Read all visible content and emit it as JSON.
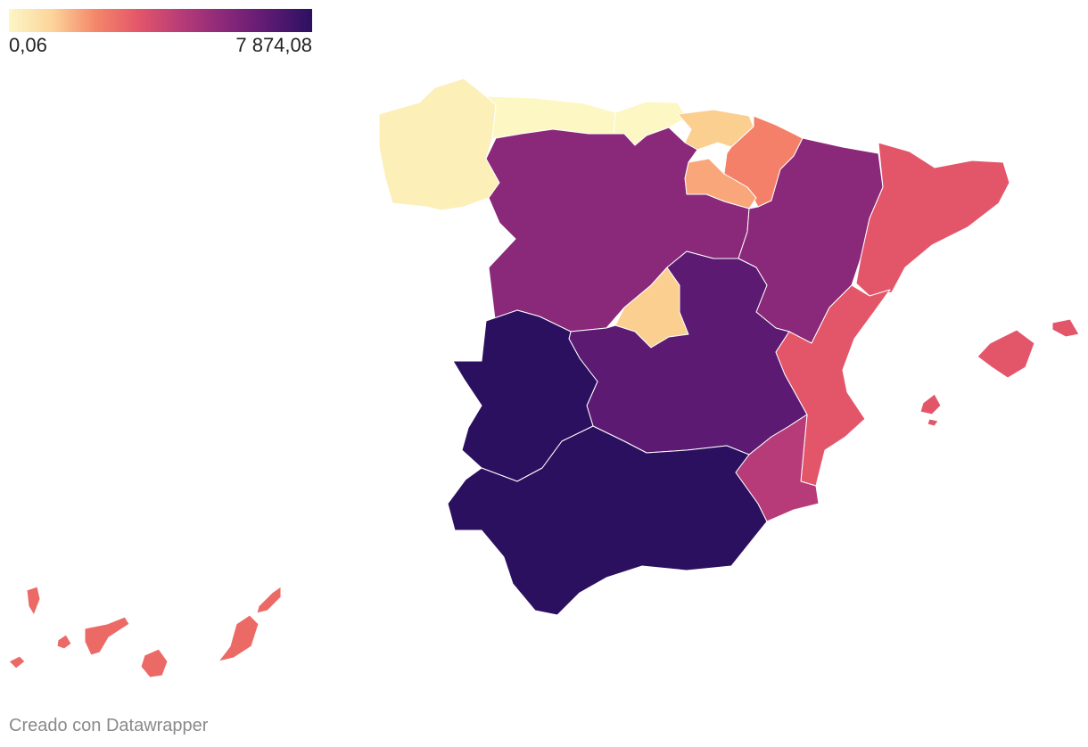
{
  "legend": {
    "min_label": "0,06",
    "max_label": "7 874,08",
    "min_value": 0.06,
    "max_value": 7874.08,
    "colors": [
      "#fcf6c5",
      "#fcd49a",
      "#f4876a",
      "#e3566a",
      "#b63b78",
      "#8a2879",
      "#5c1a73",
      "#2c1060"
    ]
  },
  "regions": [
    {
      "name": "Galicia",
      "color": "#fcefb7"
    },
    {
      "name": "Asturias",
      "color": "#fdf7c4"
    },
    {
      "name": "Cantabria",
      "color": "#fdf7c4"
    },
    {
      "name": "País Vasco",
      "color": "#fbcf90"
    },
    {
      "name": "Navarra",
      "color": "#f4806a"
    },
    {
      "name": "La Rioja",
      "color": "#f9a77a"
    },
    {
      "name": "Castilla y León",
      "color": "#8a2879"
    },
    {
      "name": "Aragón",
      "color": "#8a2879"
    },
    {
      "name": "Cataluña",
      "color": "#e3566a"
    },
    {
      "name": "Comunidad de Madrid",
      "color": "#fbcf90"
    },
    {
      "name": "Castilla-La Mancha",
      "color": "#5c1a73"
    },
    {
      "name": "Extremadura",
      "color": "#2c1060"
    },
    {
      "name": "Andalucía",
      "color": "#2c1060"
    },
    {
      "name": "Comunidad Valenciana",
      "color": "#e3566a"
    },
    {
      "name": "Región de Murcia",
      "color": "#b63b78"
    },
    {
      "name": "Illes Balears",
      "color": "#e3566a"
    },
    {
      "name": "Canarias",
      "color": "#ec6a66"
    }
  ],
  "credit": "Creado con Datawrapper"
}
